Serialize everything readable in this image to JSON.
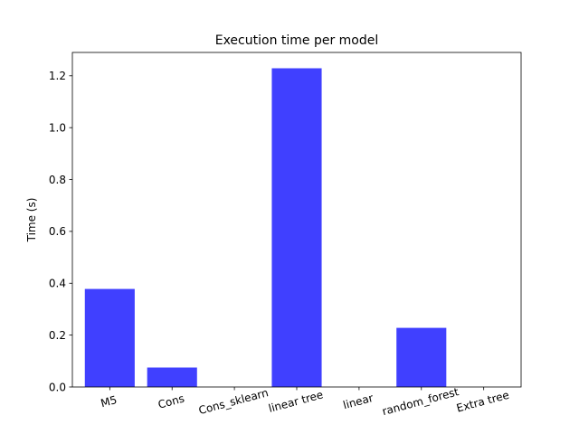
{
  "chart_data": {
    "type": "bar",
    "title": "Execution time per model",
    "xlabel": "",
    "ylabel": "Time (s)",
    "categories": [
      "M5",
      "Cons",
      "Cons_sklearn",
      "linear tree",
      "linear",
      "random_forest",
      "Extra tree"
    ],
    "values": [
      0.378,
      0.075,
      0.0,
      1.229,
      0.0,
      0.228,
      0.0
    ],
    "ylim": [
      0,
      1.29
    ],
    "yticks": [
      0.0,
      0.2,
      0.4,
      0.6,
      0.8,
      1.0,
      1.2
    ],
    "ytick_labels": [
      "0.0",
      "0.2",
      "0.4",
      "0.6",
      "0.8",
      "1.0",
      "1.2"
    ],
    "grid": false,
    "bar_color": "#4040ff",
    "xtick_rotation_deg": 15
  }
}
